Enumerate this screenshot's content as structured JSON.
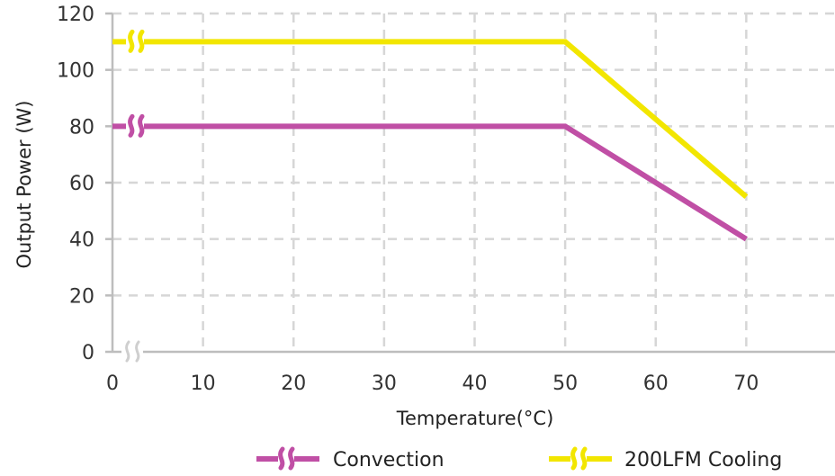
{
  "chart_data": {
    "type": "line",
    "xlabel": "Temperature(°C)",
    "ylabel": "Output Power (W)",
    "xlim": [
      0,
      80
    ],
    "ylim": [
      0,
      120
    ],
    "x_ticks": [
      0,
      10,
      20,
      30,
      40,
      50,
      60,
      70
    ],
    "y_ticks": [
      0,
      20,
      40,
      60,
      80,
      100,
      120
    ],
    "grid": true,
    "legend_position": "bottom",
    "axis_break_symbol": "double-slash break at start of x axis",
    "series": [
      {
        "name": "Convection",
        "color": "#c04fa5",
        "x": [
          0,
          50,
          70
        ],
        "y": [
          80,
          80,
          40
        ]
      },
      {
        "name": "200LFM Cooling",
        "color": "#f2e600",
        "x": [
          0,
          50,
          70
        ],
        "y": [
          110,
          110,
          55
        ]
      }
    ]
  }
}
